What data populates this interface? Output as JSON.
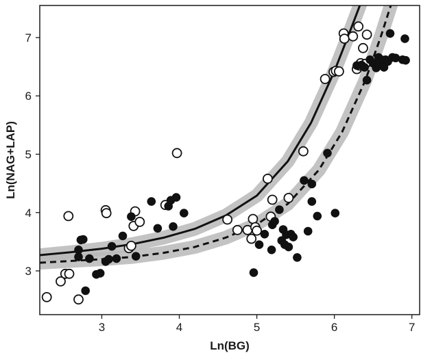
{
  "chart_data": {
    "type": "scatter",
    "xlabel": "Ln(BG)",
    "ylabel": "Ln(NAG+LAP)",
    "xlim": [
      2.2,
      7.1
    ],
    "ylim": [
      2.25,
      7.55
    ],
    "xticks": [
      3,
      4,
      5,
      6,
      7
    ],
    "yticks": [
      3,
      4,
      5,
      6,
      7
    ],
    "grid": false,
    "legend": "none",
    "series": [
      {
        "marker": "open-circle",
        "color": "#111111",
        "points": [
          [
            2.29,
            2.55
          ],
          [
            2.47,
            2.82
          ],
          [
            2.53,
            2.95
          ],
          [
            2.58,
            2.95
          ],
          [
            2.57,
            3.94
          ],
          [
            2.7,
            2.51
          ],
          [
            3.05,
            4.04
          ],
          [
            3.06,
            3.99
          ],
          [
            3.35,
            3.39
          ],
          [
            3.38,
            3.43
          ],
          [
            3.41,
            3.77
          ],
          [
            3.43,
            4.02
          ],
          [
            3.49,
            3.84
          ],
          [
            3.82,
            4.13
          ],
          [
            3.97,
            5.02
          ],
          [
            4.62,
            3.88
          ],
          [
            4.75,
            3.7
          ],
          [
            4.88,
            3.7
          ],
          [
            4.93,
            3.55
          ],
          [
            4.95,
            3.89
          ],
          [
            4.98,
            3.75
          ],
          [
            5.0,
            3.69
          ],
          [
            5.14,
            4.58
          ],
          [
            5.18,
            3.93
          ],
          [
            5.2,
            4.22
          ],
          [
            5.41,
            4.25
          ],
          [
            5.6,
            5.05
          ],
          [
            5.88,
            6.29
          ],
          [
            5.99,
            6.41
          ],
          [
            6.02,
            6.43
          ],
          [
            6.06,
            6.42
          ],
          [
            6.12,
            7.07
          ],
          [
            6.13,
            6.98
          ],
          [
            6.24,
            7.02
          ],
          [
            6.29,
            6.46
          ],
          [
            6.31,
            7.19
          ],
          [
            6.32,
            6.52
          ],
          [
            6.34,
            6.56
          ],
          [
            6.37,
            6.82
          ],
          [
            6.4,
            6.55
          ],
          [
            6.42,
            7.05
          ]
        ]
      },
      {
        "marker": "filled-circle",
        "color": "#111111",
        "points": [
          [
            2.7,
            3.24
          ],
          [
            2.7,
            3.36
          ],
          [
            2.73,
            3.53
          ],
          [
            2.76,
            3.54
          ],
          [
            2.79,
            2.66
          ],
          [
            2.84,
            3.21
          ],
          [
            2.93,
            2.94
          ],
          [
            2.98,
            2.96
          ],
          [
            3.05,
            3.16
          ],
          [
            3.09,
            3.2
          ],
          [
            3.13,
            3.42
          ],
          [
            3.19,
            3.21
          ],
          [
            3.27,
            3.6
          ],
          [
            3.38,
            3.93
          ],
          [
            3.44,
            3.25
          ],
          [
            3.64,
            4.19
          ],
          [
            3.72,
            3.73
          ],
          [
            3.86,
            4.11
          ],
          [
            3.89,
            4.21
          ],
          [
            3.92,
            3.76
          ],
          [
            3.96,
            4.26
          ],
          [
            4.06,
            3.99
          ],
          [
            4.96,
            2.97
          ],
          [
            5.03,
            3.45
          ],
          [
            5.1,
            3.63
          ],
          [
            5.19,
            3.36
          ],
          [
            5.2,
            3.79
          ],
          [
            5.23,
            3.85
          ],
          [
            5.29,
            4.05
          ],
          [
            5.32,
            3.52
          ],
          [
            5.34,
            3.71
          ],
          [
            5.36,
            3.45
          ],
          [
            5.38,
            3.62
          ],
          [
            5.41,
            3.41
          ],
          [
            5.44,
            3.63
          ],
          [
            5.47,
            3.58
          ],
          [
            5.52,
            3.23
          ],
          [
            5.61,
            4.55
          ],
          [
            5.66,
            3.68
          ],
          [
            5.71,
            4.49
          ],
          [
            5.71,
            4.19
          ],
          [
            5.78,
            3.94
          ],
          [
            5.91,
            5.02
          ],
          [
            6.01,
            3.99
          ],
          [
            6.29,
            6.52
          ],
          [
            6.35,
            6.53
          ],
          [
            6.39,
            6.49
          ],
          [
            6.42,
            6.27
          ],
          [
            6.46,
            6.62
          ],
          [
            6.5,
            6.56
          ],
          [
            6.54,
            6.48
          ],
          [
            6.57,
            6.66
          ],
          [
            6.58,
            6.52
          ],
          [
            6.61,
            6.62
          ],
          [
            6.64,
            6.49
          ],
          [
            6.66,
            6.62
          ],
          [
            6.69,
            6.59
          ],
          [
            6.72,
            7.07
          ],
          [
            6.75,
            6.66
          ],
          [
            6.79,
            6.65
          ],
          [
            6.88,
            6.62
          ],
          [
            6.91,
            6.98
          ],
          [
            6.92,
            6.61
          ]
        ]
      }
    ],
    "fitted_curves": [
      {
        "style": "solid",
        "color": "#111111",
        "band_color": "#b8b8b8",
        "x": [
          2.2,
          2.6,
          3.0,
          3.4,
          3.8,
          4.2,
          4.6,
          5.0,
          5.4,
          5.7,
          6.0,
          6.2,
          6.4,
          6.5
        ],
        "y": [
          3.27,
          3.32,
          3.38,
          3.46,
          3.57,
          3.72,
          3.95,
          4.29,
          4.88,
          5.54,
          6.42,
          7.1,
          7.8,
          8.2
        ]
      },
      {
        "style": "dashed",
        "color": "#111111",
        "band_color": "#b8b8b8",
        "x": [
          2.2,
          2.6,
          3.0,
          3.4,
          3.8,
          4.2,
          4.6,
          5.0,
          5.4,
          5.8,
          6.1,
          6.4,
          6.6,
          6.8,
          6.9
        ],
        "y": [
          3.14,
          3.17,
          3.2,
          3.24,
          3.31,
          3.41,
          3.57,
          3.8,
          4.15,
          4.73,
          5.38,
          6.27,
          7.02,
          7.85,
          8.3
        ]
      }
    ]
  }
}
